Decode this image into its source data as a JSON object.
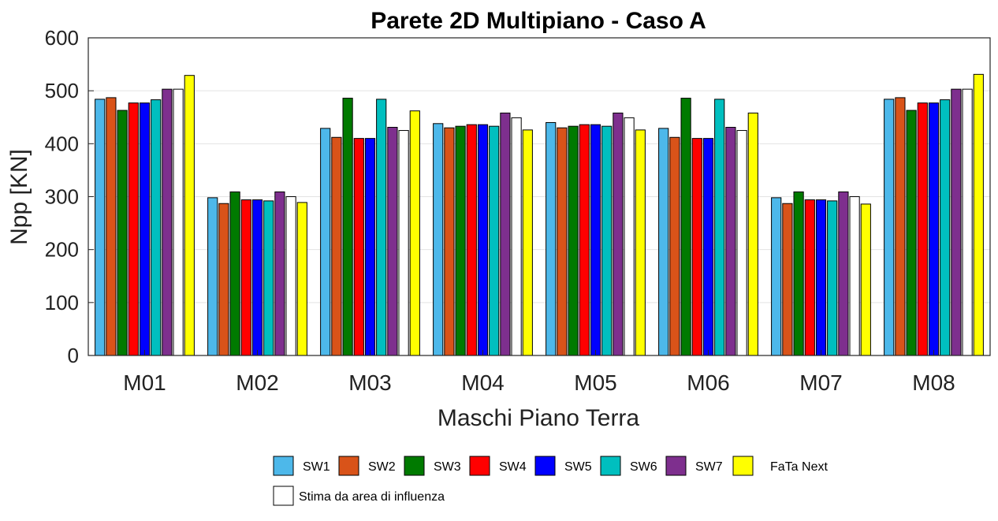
{
  "chart_data": {
    "type": "bar",
    "title": "Parete 2D Multipiano - Caso A",
    "xlabel": "Maschi Piano Terra",
    "ylabel": "Npp [KN]",
    "ylim": [
      0,
      600
    ],
    "yticks": [
      0,
      100,
      200,
      300,
      400,
      500,
      600
    ],
    "grid": true,
    "legend_position": "bottom",
    "categories": [
      "M01",
      "M02",
      "M03",
      "M04",
      "M05",
      "M06",
      "M07",
      "M08"
    ],
    "series": [
      {
        "name": "SW1",
        "color": "#4db8ea",
        "values": [
          484,
          298,
          429,
          438,
          440,
          429,
          298,
          484
        ]
      },
      {
        "name": "SW2",
        "color": "#d95319",
        "values": [
          487,
          287,
          412,
          430,
          430,
          412,
          287,
          487
        ]
      },
      {
        "name": "SW3",
        "color": "#007a00",
        "values": [
          463,
          309,
          486,
          433,
          433,
          486,
          309,
          463
        ]
      },
      {
        "name": "SW4",
        "color": "#ff0000",
        "values": [
          477,
          294,
          410,
          436,
          436,
          410,
          294,
          477
        ]
      },
      {
        "name": "SW5",
        "color": "#0000ff",
        "values": [
          477,
          294,
          410,
          436,
          436,
          410,
          294,
          477
        ]
      },
      {
        "name": "SW6",
        "color": "#00bfbf",
        "values": [
          483,
          292,
          484,
          433,
          433,
          484,
          292,
          483
        ]
      },
      {
        "name": "SW7",
        "color": "#7e2f8e",
        "values": [
          503,
          309,
          431,
          458,
          458,
          431,
          309,
          503
        ]
      },
      {
        "name": "Stima da area di influenza",
        "color": "#ffffff",
        "values": [
          503,
          300,
          425,
          449,
          449,
          425,
          300,
          503
        ]
      },
      {
        "name": "FaTa Next",
        "color": "#ffff00",
        "values": [
          529,
          289,
          462,
          426,
          426,
          458,
          286,
          531
        ]
      }
    ]
  }
}
